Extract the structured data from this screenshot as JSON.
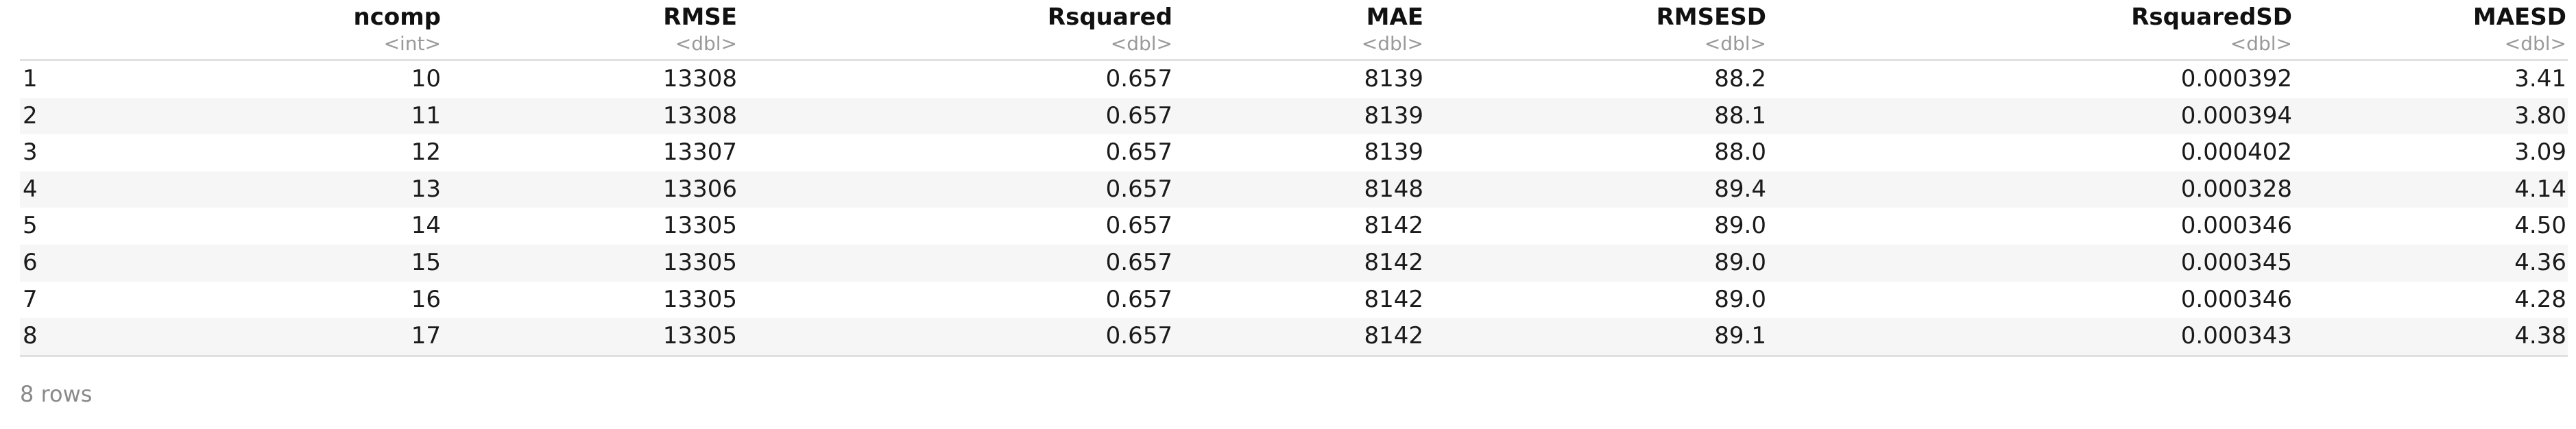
{
  "table": {
    "index_header": "",
    "columns": [
      {
        "name": "ncomp",
        "type": "<int>"
      },
      {
        "name": "RMSE",
        "type": "<dbl>"
      },
      {
        "name": "Rsquared",
        "type": "<dbl>"
      },
      {
        "name": "MAE",
        "type": "<dbl>"
      },
      {
        "name": "RMSESD",
        "type": "<dbl>"
      },
      {
        "name": "RsquaredSD",
        "type": "<dbl>"
      },
      {
        "name": "MAESD",
        "type": "<dbl>"
      }
    ],
    "rows": [
      {
        "idx": "1",
        "cells": [
          "10",
          "13308",
          "0.657",
          "8139",
          "88.2",
          "0.000392",
          "3.41"
        ]
      },
      {
        "idx": "2",
        "cells": [
          "11",
          "13308",
          "0.657",
          "8139",
          "88.1",
          "0.000394",
          "3.80"
        ]
      },
      {
        "idx": "3",
        "cells": [
          "12",
          "13307",
          "0.657",
          "8139",
          "88.0",
          "0.000402",
          "3.09"
        ]
      },
      {
        "idx": "4",
        "cells": [
          "13",
          "13306",
          "0.657",
          "8148",
          "89.4",
          "0.000328",
          "4.14"
        ]
      },
      {
        "idx": "5",
        "cells": [
          "14",
          "13305",
          "0.657",
          "8142",
          "89.0",
          "0.000346",
          "4.50"
        ]
      },
      {
        "idx": "6",
        "cells": [
          "15",
          "13305",
          "0.657",
          "8142",
          "89.0",
          "0.000345",
          "4.36"
        ]
      },
      {
        "idx": "7",
        "cells": [
          "16",
          "13305",
          "0.657",
          "8142",
          "89.0",
          "0.000346",
          "4.28"
        ]
      },
      {
        "idx": "8",
        "cells": [
          "17",
          "13305",
          "0.657",
          "8142",
          "89.1",
          "0.000343",
          "4.38"
        ]
      }
    ]
  },
  "footer": {
    "row_count": "8 rows"
  },
  "colors": {
    "stripe": "#f6f6f6",
    "rule": "#e0e0e0",
    "type_text": "#9a9a9a",
    "footer_text": "#8a8a8a"
  }
}
